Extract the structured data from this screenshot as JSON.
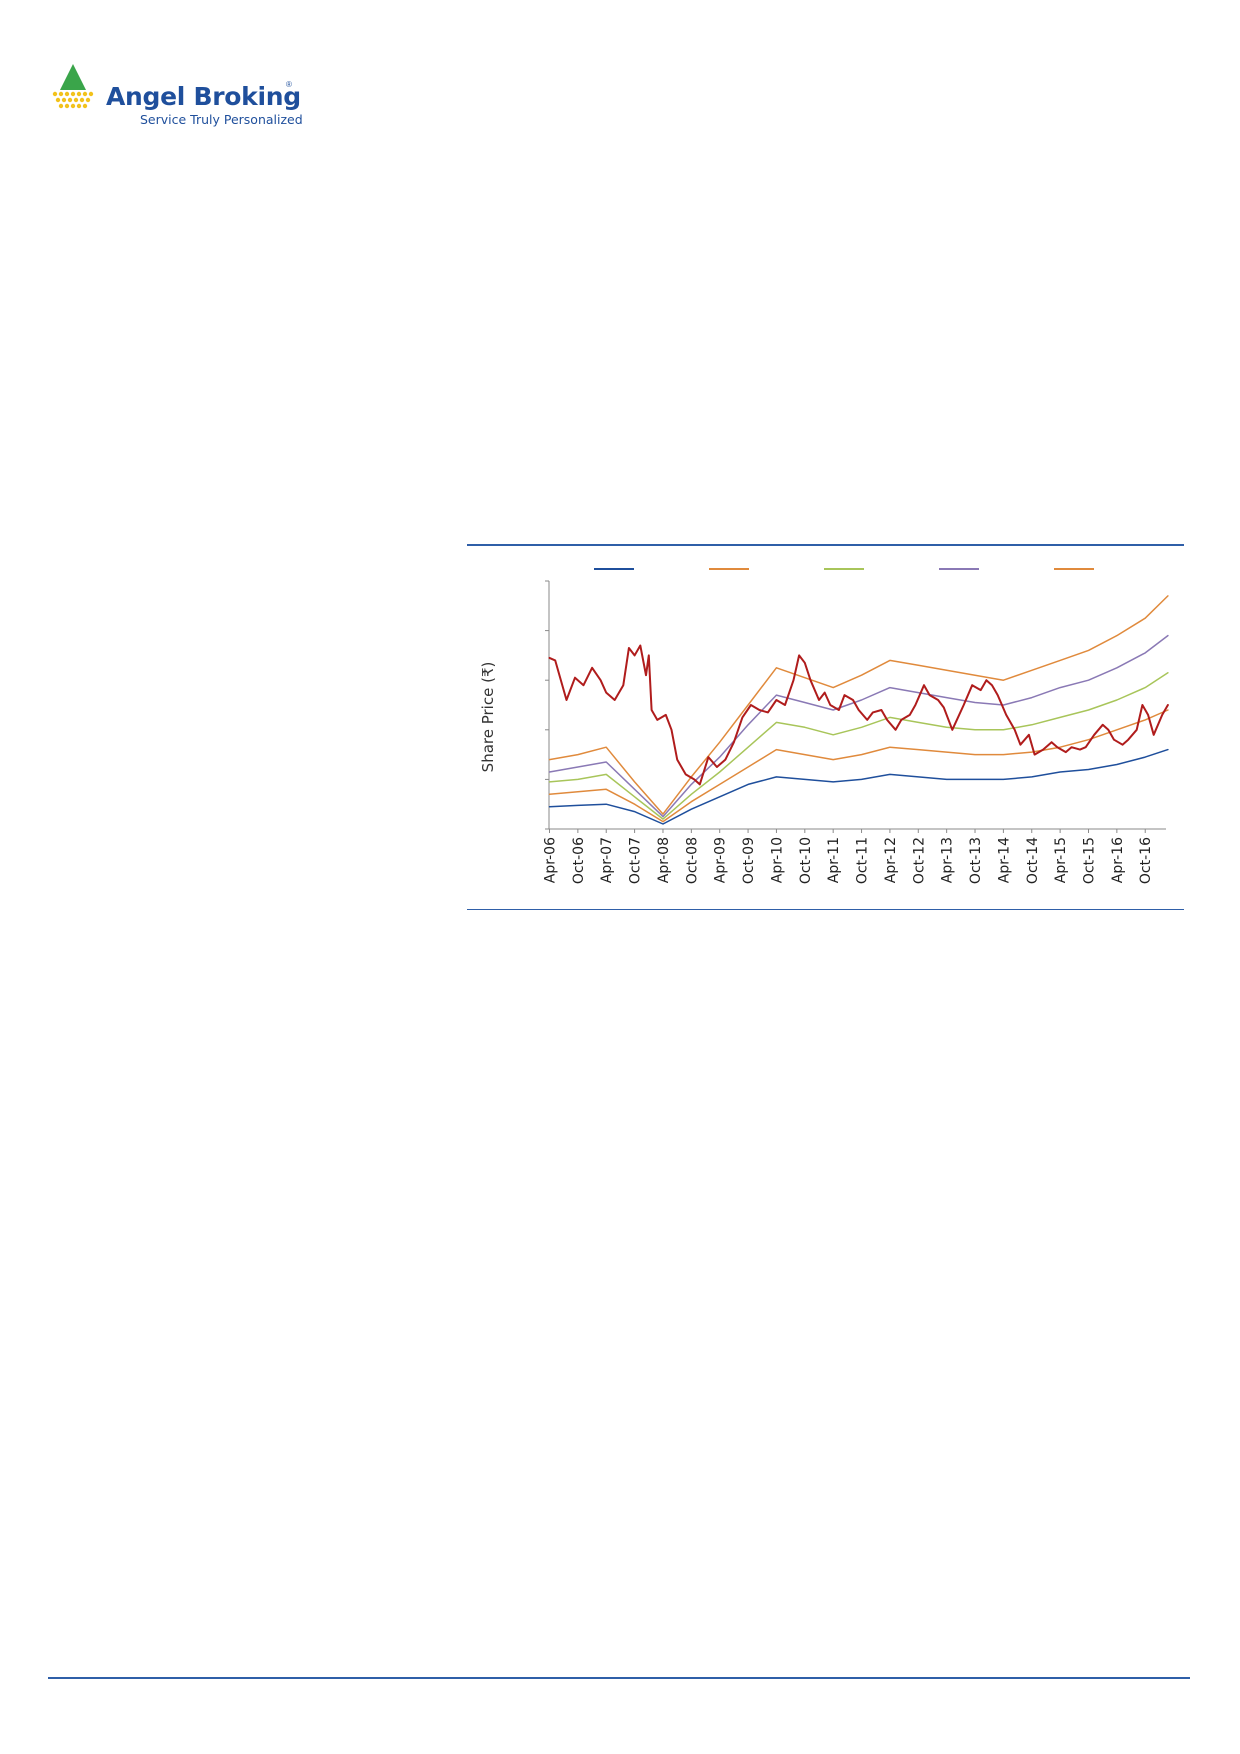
{
  "brand": {
    "name": "Angel Broking",
    "registered_mark": "®",
    "tagline": "Service Truly Personalized",
    "colors": {
      "primary": "#1f4f9c",
      "triangle_green": "#3aa54a",
      "triangle_yellow": "#f2c21b"
    }
  },
  "chart_data": {
    "type": "line",
    "ylabel": "Share Price (₹)",
    "y_tick_count": 6,
    "x_tick_labels": [
      "Apr-06",
      "Oct-06",
      "Apr-07",
      "Oct-07",
      "Apr-08",
      "Oct-08",
      "Apr-09",
      "Oct-09",
      "Apr-10",
      "Oct-10",
      "Apr-11",
      "Oct-11",
      "Apr-12",
      "Oct-12",
      "Apr-13",
      "Oct-13",
      "Apr-14",
      "Oct-14",
      "Apr-15",
      "Oct-15",
      "Apr-16",
      "Oct-16"
    ],
    "legend": {
      "position": "top",
      "labels_visible": false
    },
    "value_scale": "relative 0-100 (axis values not printed)",
    "ylim": [
      0,
      100
    ],
    "series": [
      {
        "color": "#1f4f9c",
        "points": [
          [
            0,
            9
          ],
          [
            1,
            9.5
          ],
          [
            2,
            10
          ],
          [
            3,
            7
          ],
          [
            4,
            2
          ],
          [
            5,
            8
          ],
          [
            6,
            13
          ],
          [
            7,
            18
          ],
          [
            8,
            21
          ],
          [
            9,
            20
          ],
          [
            10,
            19
          ],
          [
            11,
            20
          ],
          [
            12,
            22
          ],
          [
            13,
            21
          ],
          [
            14,
            20
          ],
          [
            15,
            20
          ],
          [
            16,
            20
          ],
          [
            17,
            21
          ],
          [
            18,
            23
          ],
          [
            19,
            24
          ],
          [
            20,
            26
          ],
          [
            21,
            29
          ],
          [
            21.8,
            32
          ]
        ]
      },
      {
        "color": "#e08a3c",
        "points": [
          [
            0,
            14
          ],
          [
            1,
            15
          ],
          [
            2,
            16
          ],
          [
            3,
            10
          ],
          [
            4,
            3
          ],
          [
            5,
            11
          ],
          [
            6,
            18
          ],
          [
            7,
            25
          ],
          [
            8,
            32
          ],
          [
            9,
            30
          ],
          [
            10,
            28
          ],
          [
            11,
            30
          ],
          [
            12,
            33
          ],
          [
            13,
            32
          ],
          [
            14,
            31
          ],
          [
            15,
            30
          ],
          [
            16,
            30
          ],
          [
            17,
            31
          ],
          [
            18,
            33
          ],
          [
            19,
            36
          ],
          [
            20,
            40
          ],
          [
            21,
            44
          ],
          [
            21.8,
            48
          ]
        ]
      },
      {
        "color": "#a8c55a",
        "points": [
          [
            0,
            19
          ],
          [
            1,
            20
          ],
          [
            2,
            22
          ],
          [
            3,
            13
          ],
          [
            4,
            4
          ],
          [
            5,
            14
          ],
          [
            6,
            23
          ],
          [
            7,
            33
          ],
          [
            8,
            43
          ],
          [
            9,
            41
          ],
          [
            10,
            38
          ],
          [
            11,
            41
          ],
          [
            12,
            45
          ],
          [
            13,
            43
          ],
          [
            14,
            41
          ],
          [
            15,
            40
          ],
          [
            16,
            40
          ],
          [
            17,
            42
          ],
          [
            18,
            45
          ],
          [
            19,
            48
          ],
          [
            20,
            52
          ],
          [
            21,
            57
          ],
          [
            21.8,
            63
          ]
        ]
      },
      {
        "color": "#8a79b5",
        "points": [
          [
            0,
            23
          ],
          [
            1,
            25
          ],
          [
            2,
            27
          ],
          [
            3,
            16
          ],
          [
            4,
            5
          ],
          [
            5,
            18
          ],
          [
            6,
            29
          ],
          [
            7,
            42
          ],
          [
            8,
            54
          ],
          [
            9,
            51
          ],
          [
            10,
            48
          ],
          [
            11,
            52
          ],
          [
            12,
            57
          ],
          [
            13,
            55
          ],
          [
            14,
            53
          ],
          [
            15,
            51
          ],
          [
            16,
            50
          ],
          [
            17,
            53
          ],
          [
            18,
            57
          ],
          [
            19,
            60
          ],
          [
            20,
            65
          ],
          [
            21,
            71
          ],
          [
            21.8,
            78
          ]
        ]
      },
      {
        "color": "#e08a3c",
        "points": [
          [
            0,
            28
          ],
          [
            1,
            30
          ],
          [
            2,
            33
          ],
          [
            3,
            19
          ],
          [
            4,
            6
          ],
          [
            5,
            21
          ],
          [
            6,
            35
          ],
          [
            7,
            50
          ],
          [
            8,
            65
          ],
          [
            9,
            61
          ],
          [
            10,
            57
          ],
          [
            11,
            62
          ],
          [
            12,
            68
          ],
          [
            13,
            66
          ],
          [
            14,
            64
          ],
          [
            15,
            62
          ],
          [
            16,
            60
          ],
          [
            17,
            64
          ],
          [
            18,
            68
          ],
          [
            19,
            72
          ],
          [
            20,
            78
          ],
          [
            21,
            85
          ],
          [
            21.8,
            94
          ]
        ]
      },
      {
        "color": "#b01c1c",
        "points": [
          [
            0,
            69
          ],
          [
            0.2,
            68
          ],
          [
            0.6,
            52
          ],
          [
            0.9,
            61
          ],
          [
            1.2,
            58
          ],
          [
            1.5,
            65
          ],
          [
            1.8,
            60
          ],
          [
            2,
            55
          ],
          [
            2.3,
            52
          ],
          [
            2.6,
            58
          ],
          [
            2.8,
            73
          ],
          [
            3,
            70
          ],
          [
            3.2,
            74
          ],
          [
            3.4,
            62
          ],
          [
            3.5,
            70
          ],
          [
            3.6,
            48
          ],
          [
            3.8,
            44
          ],
          [
            4.1,
            46
          ],
          [
            4.3,
            40
          ],
          [
            4.5,
            28
          ],
          [
            4.8,
            22
          ],
          [
            5.1,
            20
          ],
          [
            5.3,
            18
          ],
          [
            5.6,
            29
          ],
          [
            5.9,
            25
          ],
          [
            6.2,
            28
          ],
          [
            6.5,
            35
          ],
          [
            6.8,
            45
          ],
          [
            7.1,
            50
          ],
          [
            7.4,
            48
          ],
          [
            7.7,
            47
          ],
          [
            8,
            52
          ],
          [
            8.3,
            50
          ],
          [
            8.6,
            60
          ],
          [
            8.8,
            70
          ],
          [
            9,
            67
          ],
          [
            9.2,
            60
          ],
          [
            9.5,
            52
          ],
          [
            9.7,
            55
          ],
          [
            9.9,
            50
          ],
          [
            10.2,
            48
          ],
          [
            10.4,
            54
          ],
          [
            10.7,
            52
          ],
          [
            10.9,
            48
          ],
          [
            11.2,
            44
          ],
          [
            11.4,
            47
          ],
          [
            11.7,
            48
          ],
          [
            11.9,
            44
          ],
          [
            12.2,
            40
          ],
          [
            12.4,
            44
          ],
          [
            12.7,
            46
          ],
          [
            12.9,
            50
          ],
          [
            13.2,
            58
          ],
          [
            13.4,
            54
          ],
          [
            13.7,
            52
          ],
          [
            13.9,
            49
          ],
          [
            14.2,
            40
          ],
          [
            14.4,
            45
          ],
          [
            14.6,
            50
          ],
          [
            14.9,
            58
          ],
          [
            15.2,
            56
          ],
          [
            15.4,
            60
          ],
          [
            15.6,
            58
          ],
          [
            15.8,
            54
          ],
          [
            16.1,
            46
          ],
          [
            16.4,
            40
          ],
          [
            16.6,
            34
          ],
          [
            16.9,
            38
          ],
          [
            17.1,
            30
          ],
          [
            17.4,
            32
          ],
          [
            17.7,
            35
          ],
          [
            17.9,
            33
          ],
          [
            18.2,
            31
          ],
          [
            18.4,
            33
          ],
          [
            18.7,
            32
          ],
          [
            18.9,
            33
          ],
          [
            19.2,
            38
          ],
          [
            19.5,
            42
          ],
          [
            19.7,
            40
          ],
          [
            19.9,
            36
          ],
          [
            20.2,
            34
          ],
          [
            20.4,
            36
          ],
          [
            20.7,
            40
          ],
          [
            20.9,
            50
          ],
          [
            21.1,
            46
          ],
          [
            21.3,
            38
          ],
          [
            21.6,
            46
          ],
          [
            21.8,
            50
          ]
        ]
      }
    ]
  }
}
